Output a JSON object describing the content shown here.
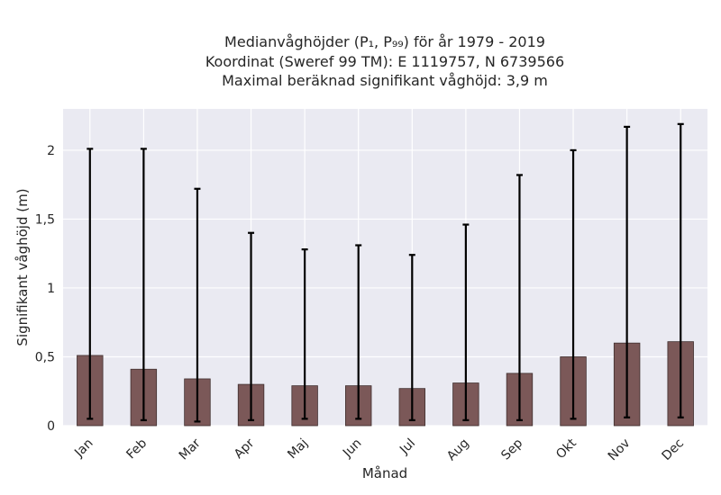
{
  "chart_data": {
    "type": "bar",
    "title_lines": [
      "Medianvåghöjder (P₁, P₉₉) för år 1979 - 2019",
      "Koordinat (Sweref 99 TM): E 1119757, N 6739566",
      "Maximal beräknad signifikant våghöjd: 3,9 m"
    ],
    "xlabel": "Månad",
    "ylabel": "Signifikant våghöjd (m)",
    "ylim": [
      0,
      2.3
    ],
    "yticks": [
      0,
      0.5,
      1,
      1.5,
      2
    ],
    "ytick_labels": [
      "0",
      "0,5",
      "1",
      "1,5",
      "2"
    ],
    "grid": true,
    "categories": [
      "Jan",
      "Feb",
      "Mar",
      "Apr",
      "Maj",
      "Jun",
      "Jul",
      "Aug",
      "Sep",
      "Okt",
      "Nov",
      "Dec"
    ],
    "series": [
      {
        "values": [
          0.51,
          0.41,
          0.34,
          0.3,
          0.29,
          0.29,
          0.27,
          0.31,
          0.38,
          0.5,
          0.6,
          0.61
        ],
        "p1": [
          0.05,
          0.04,
          0.03,
          0.04,
          0.05,
          0.05,
          0.04,
          0.04,
          0.04,
          0.05,
          0.06,
          0.06
        ],
        "p99": [
          2.01,
          2.01,
          1.72,
          1.4,
          1.28,
          1.31,
          1.24,
          1.46,
          1.82,
          2.0,
          2.17,
          2.19
        ]
      }
    ],
    "colors": {
      "bar": "#7b5858",
      "plot_background": "#eaeaf2",
      "error_bar": "#000000"
    }
  }
}
